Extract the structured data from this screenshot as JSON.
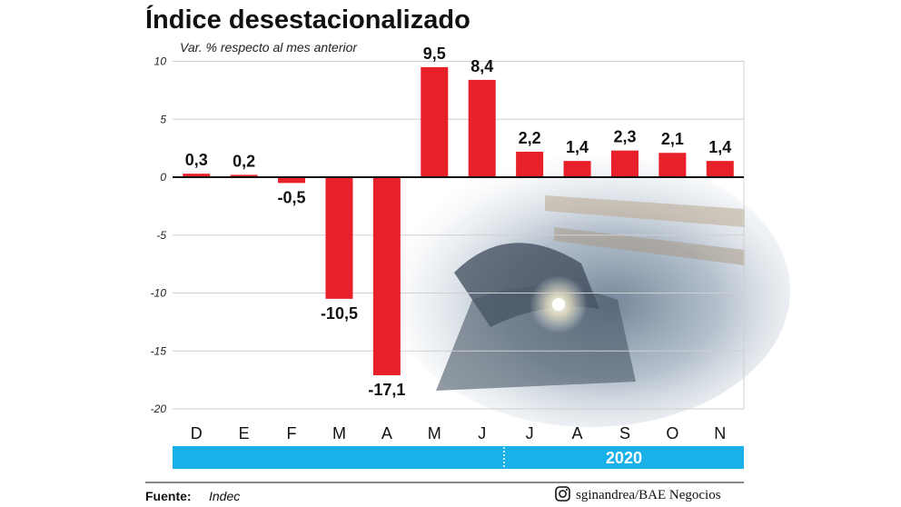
{
  "colors": {
    "bar": "#e8202a",
    "year_band": "#1ab0e8",
    "grid": "#cfcfcf",
    "axis": "#111111"
  },
  "footer": {
    "source_label": "Fuente:",
    "source_value": "Indec",
    "credit": "sginandrea/BAE Negocios",
    "credit_icon": "instagram-icon"
  },
  "chart_data": {
    "type": "bar",
    "title": "Índice desestacionalizado",
    "subtitle": "Var. % respecto al mes anterior",
    "categories": [
      "D",
      "E",
      "F",
      "M",
      "A",
      "M",
      "J",
      "J",
      "A",
      "S",
      "O",
      "N"
    ],
    "values": [
      0.3,
      0.2,
      -0.5,
      -10.5,
      -17.1,
      9.5,
      8.4,
      2.2,
      1.4,
      2.3,
      2.1,
      1.4
    ],
    "value_labels": [
      "0,3",
      "0,2",
      "-0,5",
      "-10,5",
      "-17,1",
      "9,5",
      "8,4",
      "2,2",
      "1,4",
      "2,3",
      "2,1",
      "1,4"
    ],
    "yticks": [
      10,
      5,
      0,
      -5,
      -10,
      -15,
      -20
    ],
    "ylim": [
      -20,
      10
    ],
    "grid": true,
    "year_label": "2020",
    "year_start_index": 7
  }
}
